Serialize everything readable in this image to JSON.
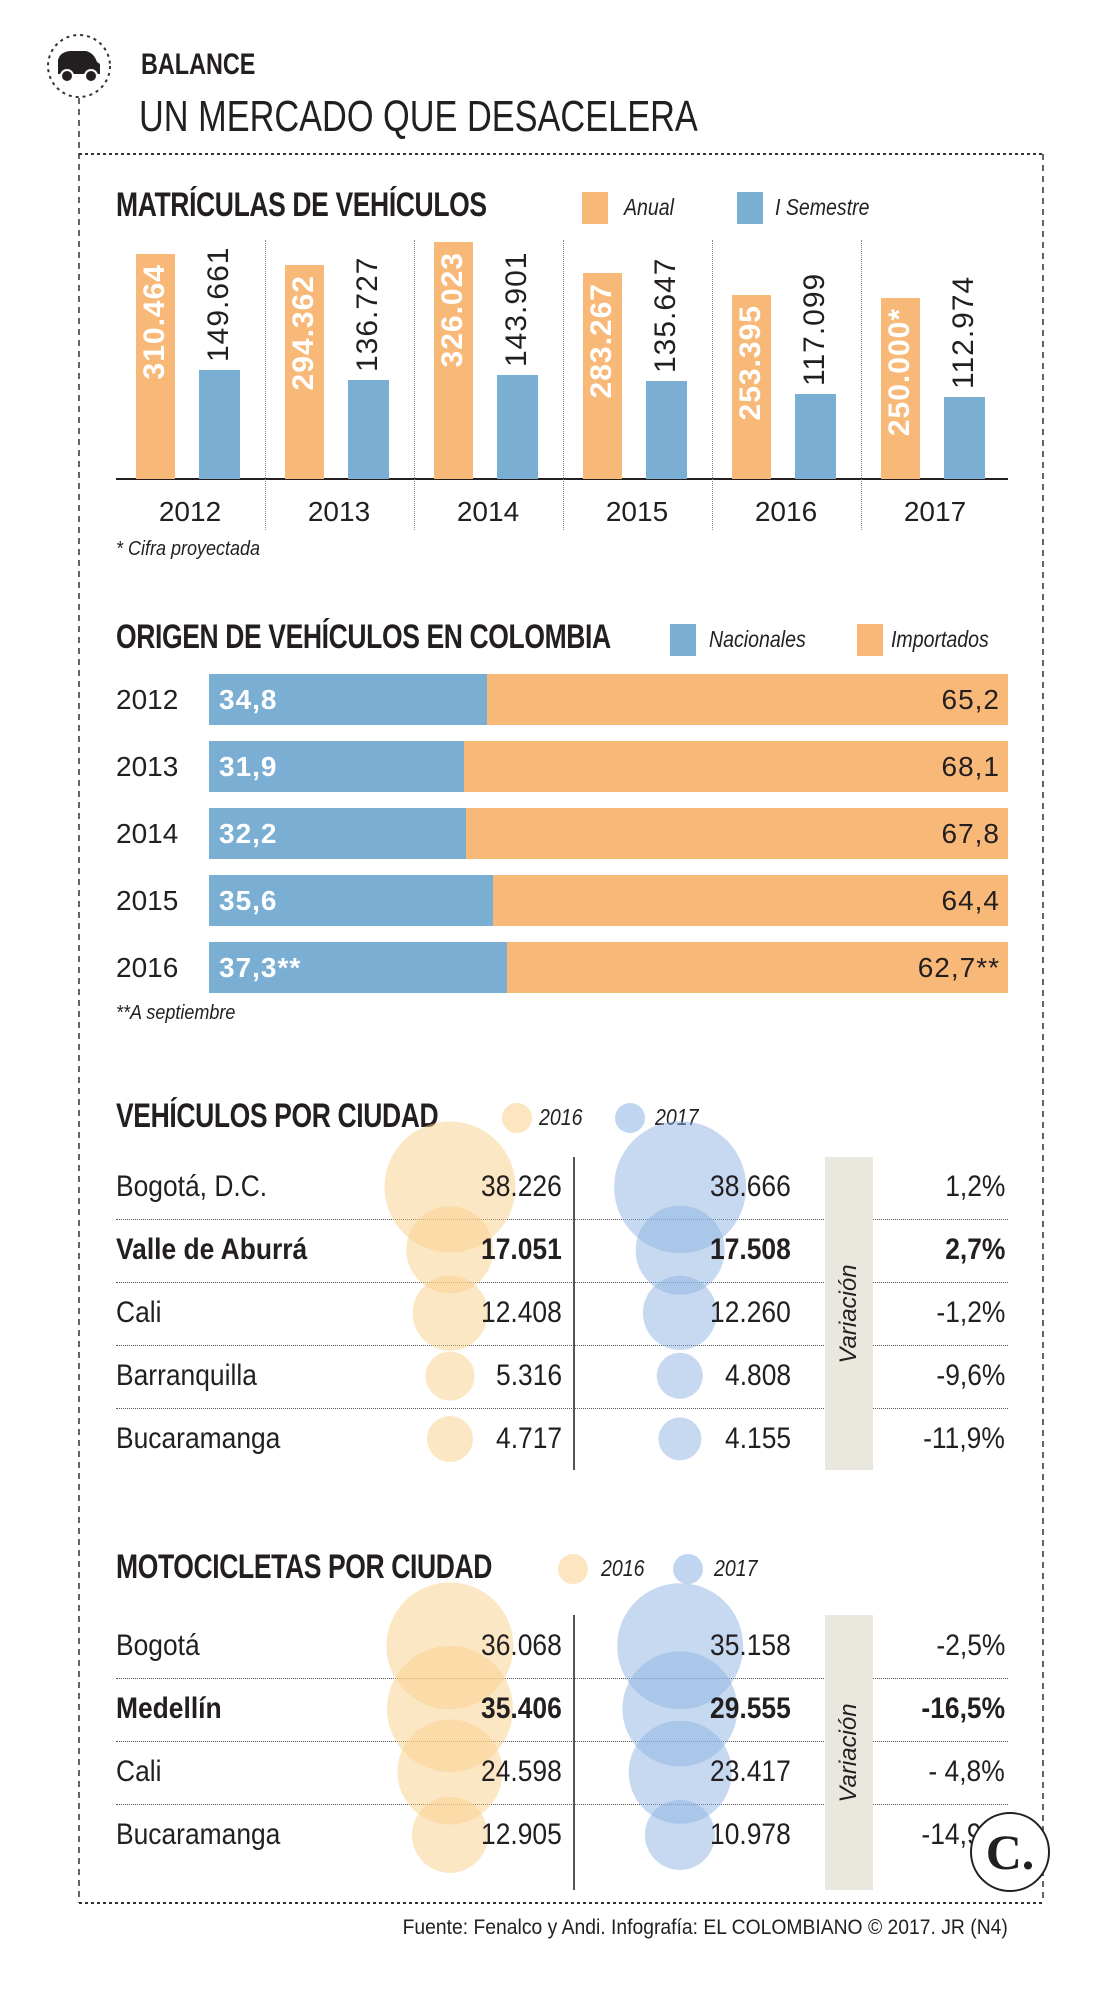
{
  "header": {
    "kicker": "BALANCE",
    "title": "UN MERCADO QUE DESACELERA",
    "icon": "car-icon"
  },
  "colors": {
    "anual": "#f8b877",
    "semestre": "#7aaed3",
    "nacionales": "#7aaed3",
    "importados": "#f8b877",
    "bubble2016": "#f9d08a",
    "bubble2017": "#8db3e2",
    "variacion_bg": "#e9e7de"
  },
  "chart_data": [
    {
      "type": "bar",
      "title": "MATRÍCULAS DE VEHÍCULOS",
      "categories": [
        "2012",
        "2013",
        "2014",
        "2015",
        "2016",
        "2017"
      ],
      "series": [
        {
          "name": "Anual",
          "values": [
            310464,
            294362,
            326023,
            283267,
            253395,
            250000
          ],
          "labels": [
            "310.464",
            "294.362",
            "326.023",
            "283.267",
            "253.395",
            "250.000*"
          ]
        },
        {
          "name": "I Semestre",
          "values": [
            149661,
            136727,
            143901,
            135647,
            117099,
            112974
          ],
          "labels": [
            "149.661",
            "136.727",
            "143.901",
            "135.647",
            "117.099",
            "112.974"
          ]
        }
      ],
      "note": "* Cifra proyectada"
    },
    {
      "type": "bar",
      "orientation": "horizontal-stacked-100",
      "title": "ORIGEN DE VEHÍCULOS EN COLOMBIA",
      "categories": [
        "2012",
        "2013",
        "2014",
        "2015",
        "2016"
      ],
      "series": [
        {
          "name": "Nacionales",
          "values": [
            34.8,
            31.9,
            32.2,
            35.6,
            37.3
          ],
          "labels": [
            "34,8",
            "31,9",
            "32,2",
            "35,6",
            "37,3**"
          ]
        },
        {
          "name": "Importados",
          "values": [
            65.2,
            68.1,
            67.8,
            64.4,
            62.7
          ],
          "labels": [
            "65,2",
            "68,1",
            "67,8",
            "64,4",
            "62,7**"
          ]
        }
      ],
      "note": "**A septiembre"
    },
    {
      "type": "table",
      "title": "VEHÍCULOS POR CIUDAD",
      "legend": [
        "2016",
        "2017"
      ],
      "variation_label": "Variación",
      "rows": [
        {
          "city": "Bogotá, D.C.",
          "v2016": 38226,
          "v2017": 38666,
          "l2016": "38.226",
          "l2017": "38.666",
          "variation": "1,2%",
          "highlight": false
        },
        {
          "city": "Valle de Aburrá",
          "v2016": 17051,
          "v2017": 17508,
          "l2016": "17.051",
          "l2017": "17.508",
          "variation": "2,7%",
          "highlight": true
        },
        {
          "city": "Cali",
          "v2016": 12408,
          "v2017": 12260,
          "l2016": "12.408",
          "l2017": "12.260",
          "variation": "-1,2%",
          "highlight": false
        },
        {
          "city": "Barranquilla",
          "v2016": 5316,
          "v2017": 4808,
          "l2016": "5.316",
          "l2017": "4.808",
          "variation": "-9,6%",
          "highlight": false
        },
        {
          "city": "Bucaramanga",
          "v2016": 4717,
          "v2017": 4155,
          "l2016": "4.717",
          "l2017": "4.155",
          "variation": "-11,9%",
          "highlight": false
        }
      ]
    },
    {
      "type": "table",
      "title": "MOTOCICLETAS POR CIUDAD",
      "legend": [
        "2016",
        "2017"
      ],
      "variation_label": "Variación",
      "rows": [
        {
          "city": "Bogotá",
          "v2016": 36068,
          "v2017": 35158,
          "l2016": "36.068",
          "l2017": "35.158",
          "variation": "-2,5%",
          "highlight": false
        },
        {
          "city": "Medellín",
          "v2016": 35406,
          "v2017": 29555,
          "l2016": "35.406",
          "l2017": "29.555",
          "variation": "-16,5%",
          "highlight": true
        },
        {
          "city": "Cali",
          "v2016": 24598,
          "v2017": 23417,
          "l2016": "24.598",
          "l2017": "23.417",
          "variation": "- 4,8%",
          "highlight": false
        },
        {
          "city": "Bucaramanga",
          "v2016": 12905,
          "v2017": 10978,
          "l2016": "12.905",
          "l2017": "10.978",
          "variation": "-14,9%",
          "highlight": false
        }
      ]
    }
  ],
  "footer": {
    "source": "Fuente: Fenalco y Andi. Infografía: EL COLOMBIANO © 2017. JR (N4)",
    "logo_text": "C."
  }
}
